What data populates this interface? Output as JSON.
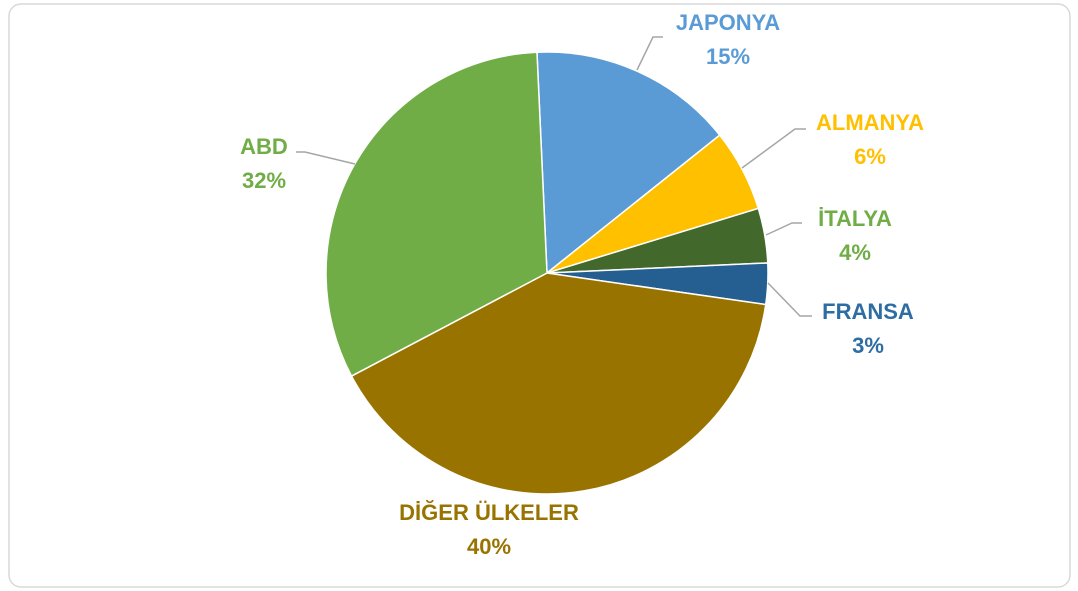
{
  "chart_data": {
    "type": "pie",
    "categories": [
      "JAPONYA",
      "ALMANYA",
      "İTALYA",
      "FRANSA",
      "DİĞER ÜLKELER",
      "ABD"
    ],
    "values": [
      15,
      6,
      4,
      3,
      40,
      32
    ],
    "value_labels": [
      "15%",
      "6%",
      "4%",
      "3%",
      "40%",
      "32%"
    ],
    "colors": [
      "#5B9BD5",
      "#FFC000",
      "#43682B",
      "#255E91",
      "#997300",
      "#70AD47"
    ],
    "label_colors": [
      "#5B9BD5",
      "#FFC000",
      "#70AD47",
      "#2E6DA4",
      "#997300",
      "#70AD47"
    ]
  }
}
